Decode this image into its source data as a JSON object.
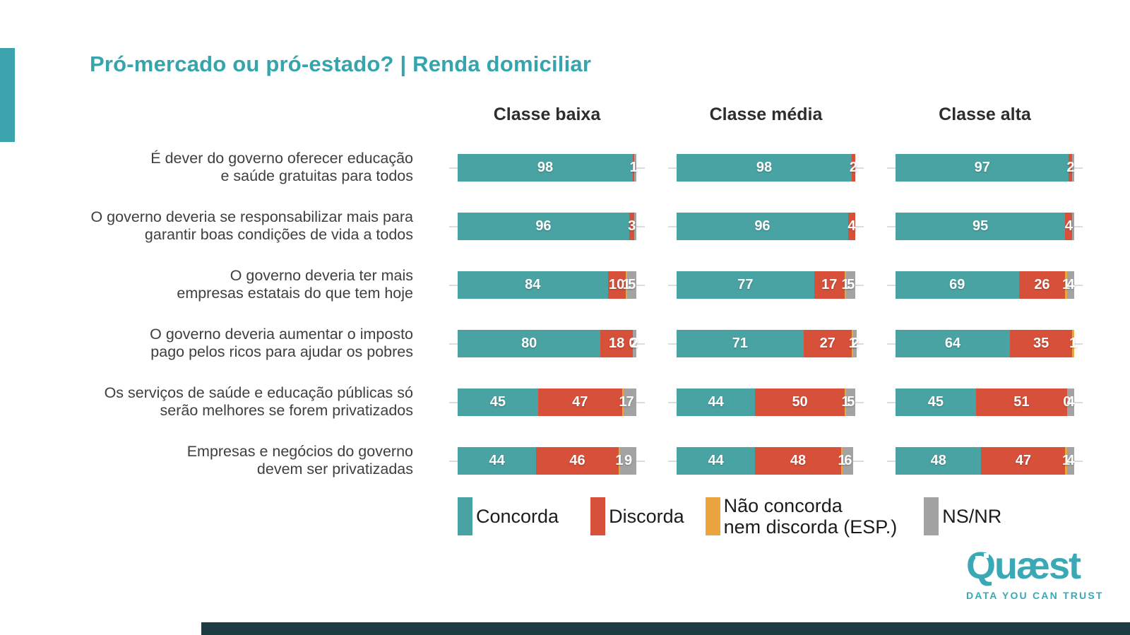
{
  "title": "Pró-mercado ou pró-estado? | Renda domiciliar",
  "colors": {
    "accent": "#3ba3ab",
    "title": "#35a4ac",
    "bottom_bar": "#1d3c42",
    "logo": "#3aa8b5",
    "concorda": "#4aa3a3",
    "discorda": "#d6503a",
    "nao_concorda": "#eba43e",
    "ns_nr": "#a3a3a3"
  },
  "legend": [
    {
      "name": "concorda",
      "lines": [
        "Concorda"
      ],
      "color": "#4aa3a3"
    },
    {
      "name": "discorda",
      "lines": [
        "Discorda"
      ],
      "color": "#d6503a"
    },
    {
      "name": "nao-concorda-nem-discorda-esp",
      "lines": [
        "Não concorda",
        "nem discorda (ESP.)"
      ],
      "color": "#eba43e"
    },
    {
      "name": "ns-nr",
      "lines": [
        "NS/NR"
      ],
      "color": "#a3a3a3"
    }
  ],
  "branding": {
    "logo_text": "Quæst",
    "tagline": "DATA YOU CAN TRUST"
  },
  "chart_data": {
    "type": "bar",
    "orientation": "horizontal",
    "stacked": true,
    "title": "Pró-mercado ou pró-estado? | Renda domiciliar",
    "groups": [
      "Classe baixa",
      "Classe média",
      "Classe alta"
    ],
    "series_names": [
      "Concorda",
      "Discorda",
      "Não concorda nem discorda (ESP.)",
      "NS/NR"
    ],
    "series_colors": [
      "#4aa3a3",
      "#d6503a",
      "#eba43e",
      "#a3a3a3"
    ],
    "xlim": [
      0,
      100
    ],
    "unit": "percent",
    "rows": [
      {
        "label_lines": [
          "É dever do governo oferecer educação",
          "e saúde gratuitas para todos"
        ],
        "cells": [
          {
            "group": "Classe baixa",
            "values": [
              98,
              1,
              0,
              1
            ],
            "labels": [
              "98",
              "1",
              "",
              ""
            ]
          },
          {
            "group": "Classe média",
            "values": [
              98,
              2,
              0,
              0
            ],
            "labels": [
              "98",
              "2",
              "",
              ""
            ]
          },
          {
            "group": "Classe alta",
            "values": [
              97,
              2,
              0,
              1
            ],
            "labels": [
              "97",
              "2",
              "",
              ""
            ]
          }
        ]
      },
      {
        "label_lines": [
          "O governo deveria se responsabilizar mais para",
          "garantir boas condições de vida a todos"
        ],
        "cells": [
          {
            "group": "Classe baixa",
            "values": [
              96,
              3,
              0,
              1
            ],
            "labels": [
              "96",
              "3",
              "",
              ""
            ]
          },
          {
            "group": "Classe média",
            "values": [
              96,
              4,
              0,
              0
            ],
            "labels": [
              "96",
              "4",
              "",
              ""
            ]
          },
          {
            "group": "Classe alta",
            "values": [
              95,
              4,
              0,
              1
            ],
            "labels": [
              "95",
              "4",
              "",
              ""
            ]
          }
        ]
      },
      {
        "label_lines": [
          "O governo deveria ter mais",
          "empresas estatais do que tem hoje"
        ],
        "cells": [
          {
            "group": "Classe baixa",
            "values": [
              84,
              10,
              1,
              5
            ],
            "labels": [
              "84",
              "10",
              "1",
              "5"
            ]
          },
          {
            "group": "Classe média",
            "values": [
              77,
              17,
              1,
              5
            ],
            "labels": [
              "77",
              "17",
              "1",
              "5"
            ]
          },
          {
            "group": "Classe alta",
            "values": [
              69,
              26,
              1,
              4
            ],
            "labels": [
              "69",
              "26",
              "1",
              "4"
            ]
          }
        ]
      },
      {
        "label_lines": [
          "O governo deveria aumentar o imposto",
          "pago pelos ricos para ajudar os pobres"
        ],
        "cells": [
          {
            "group": "Classe baixa",
            "values": [
              80,
              18,
              0,
              2
            ],
            "labels": [
              "80",
              "18",
              "0",
              "2"
            ]
          },
          {
            "group": "Classe média",
            "values": [
              71,
              27,
              1,
              2
            ],
            "labels": [
              "71",
              "27",
              "1",
              "2"
            ]
          },
          {
            "group": "Classe alta",
            "values": [
              64,
              35,
              1,
              0
            ],
            "labels": [
              "64",
              "35",
              "1",
              ""
            ]
          }
        ]
      },
      {
        "label_lines": [
          "Os serviços de saúde e educação públicas só",
          "serão melhores se forem privatizados"
        ],
        "cells": [
          {
            "group": "Classe baixa",
            "values": [
              45,
              47,
              1,
              7
            ],
            "labels": [
              "45",
              "47",
              "1",
              "7"
            ]
          },
          {
            "group": "Classe média",
            "values": [
              44,
              50,
              1,
              5
            ],
            "labels": [
              "44",
              "50",
              "1",
              "5"
            ]
          },
          {
            "group": "Classe alta",
            "values": [
              45,
              51,
              0,
              4
            ],
            "labels": [
              "45",
              "51",
              "0",
              "4"
            ]
          }
        ]
      },
      {
        "label_lines": [
          "Empresas e negócios do governo",
          "devem ser privatizadas"
        ],
        "cells": [
          {
            "group": "Classe baixa",
            "values": [
              44,
              46,
              1,
              9
            ],
            "labels": [
              "44",
              "46",
              "1",
              "9"
            ]
          },
          {
            "group": "Classe média",
            "values": [
              44,
              48,
              1,
              6
            ],
            "labels": [
              "44",
              "48",
              "1",
              "6"
            ]
          },
          {
            "group": "Classe alta",
            "values": [
              48,
              47,
              1,
              4
            ],
            "labels": [
              "48",
              "47",
              "1",
              "4"
            ]
          }
        ]
      }
    ]
  }
}
